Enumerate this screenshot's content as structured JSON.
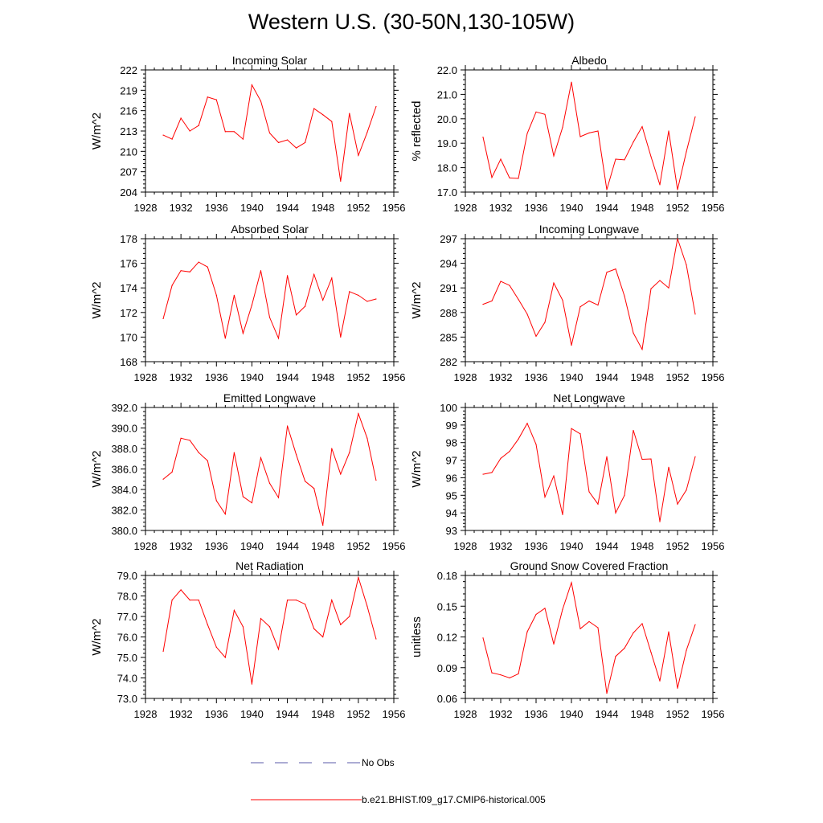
{
  "title": "Western U.S. (30-50N,130-105W)",
  "colors": {
    "model": "#ff0000",
    "obs": "#5a5aa8",
    "axis": "#000000"
  },
  "legend": {
    "obs_label": "No Obs",
    "model_label": "b.e21.BHIST.f09_g17.CMIP6-historical.005"
  },
  "chart_data": [
    {
      "type": "line",
      "title": "Incoming Solar",
      "ylabel": "W/m^2",
      "xlim": [
        1928,
        1956
      ],
      "ylim": [
        204,
        222
      ],
      "xticks": [
        "1928",
        "1932",
        "1936",
        "1940",
        "1944",
        "1948",
        "1952",
        "1956"
      ],
      "yticks": [
        "204",
        "207",
        "210",
        "213",
        "216",
        "219",
        "222"
      ],
      "series": [
        {
          "x": [
            1930,
            1931,
            1932,
            1933,
            1934,
            1935,
            1936,
            1937,
            1938,
            1939,
            1940,
            1941,
            1942,
            1943,
            1944,
            1945,
            1946,
            1947,
            1948,
            1949,
            1950,
            1951,
            1952,
            1953,
            1954
          ],
          "values": [
            212.4,
            211.8,
            214.9,
            213.0,
            213.8,
            218.0,
            217.6,
            212.9,
            212.9,
            211.8,
            219.8,
            217.4,
            212.7,
            211.3,
            211.7,
            210.5,
            211.3,
            216.3,
            215.4,
            214.4,
            205.6,
            215.6,
            209.4,
            212.8,
            216.6
          ]
        }
      ]
    },
    {
      "type": "line",
      "title": "Albedo",
      "ylabel": "% reflected",
      "xlim": [
        1928,
        1956
      ],
      "ylim": [
        17.0,
        22.0
      ],
      "xticks": [
        "1928",
        "1932",
        "1936",
        "1940",
        "1944",
        "1948",
        "1952",
        "1956"
      ],
      "yticks": [
        "17.0",
        "18.0",
        "19.0",
        "20.0",
        "21.0",
        "22.0"
      ],
      "series": [
        {
          "x": [
            1930,
            1931,
            1932,
            1933,
            1934,
            1935,
            1936,
            1937,
            1938,
            1939,
            1940,
            1941,
            1942,
            1943,
            1944,
            1945,
            1946,
            1947,
            1948,
            1949,
            1950,
            1951,
            1952,
            1953,
            1954
          ],
          "values": [
            19.25,
            17.6,
            18.35,
            17.58,
            17.56,
            19.4,
            20.28,
            20.18,
            18.48,
            19.65,
            21.5,
            19.27,
            19.42,
            19.5,
            17.1,
            18.35,
            18.32,
            19.05,
            19.68,
            18.45,
            17.3,
            19.5,
            17.1,
            18.65,
            20.08
          ]
        }
      ]
    },
    {
      "type": "line",
      "title": "Absorbed Solar",
      "ylabel": "W/m^2",
      "xlim": [
        1928,
        1956
      ],
      "ylim": [
        168,
        178
      ],
      "xticks": [
        "1928",
        "1932",
        "1936",
        "1940",
        "1944",
        "1948",
        "1952",
        "1956"
      ],
      "yticks": [
        "168",
        "170",
        "172",
        "174",
        "176",
        "178"
      ],
      "series": [
        {
          "x": [
            1930,
            1931,
            1932,
            1933,
            1934,
            1935,
            1936,
            1937,
            1938,
            1939,
            1940,
            1941,
            1942,
            1943,
            1944,
            1945,
            1946,
            1947,
            1948,
            1949,
            1950,
            1951,
            1952,
            1953,
            1954
          ],
          "values": [
            171.5,
            174.2,
            175.4,
            175.3,
            176.1,
            175.7,
            173.4,
            169.9,
            173.4,
            170.3,
            172.6,
            175.4,
            171.6,
            169.9,
            175.0,
            171.8,
            172.5,
            175.1,
            173.0,
            174.8,
            170.0,
            173.7,
            173.4,
            172.9,
            173.1
          ]
        }
      ]
    },
    {
      "type": "line",
      "title": "Incoming Longwave",
      "ylabel": "W/m^2",
      "xlim": [
        1928,
        1956
      ],
      "ylim": [
        282,
        297
      ],
      "xticks": [
        "1928",
        "1932",
        "1936",
        "1940",
        "1944",
        "1948",
        "1952",
        "1956"
      ],
      "yticks": [
        "282",
        "285",
        "288",
        "291",
        "294",
        "297"
      ],
      "series": [
        {
          "x": [
            1930,
            1931,
            1932,
            1933,
            1934,
            1935,
            1936,
            1937,
            1938,
            1939,
            1940,
            1941,
            1942,
            1943,
            1944,
            1945,
            1946,
            1947,
            1948,
            1949,
            1950,
            1951,
            1952,
            1953,
            1954
          ],
          "values": [
            289.0,
            289.4,
            291.8,
            291.3,
            289.6,
            287.8,
            285.1,
            286.8,
            291.6,
            289.5,
            284.0,
            288.7,
            289.4,
            288.9,
            292.9,
            293.3,
            290.0,
            285.5,
            283.5,
            290.9,
            291.9,
            291.0,
            297.0,
            293.8,
            287.8
          ]
        }
      ]
    },
    {
      "type": "line",
      "title": "Emitted Longwave",
      "ylabel": "W/m^2",
      "xlim": [
        1928,
        1956
      ],
      "ylim": [
        380.0,
        392.0
      ],
      "xticks": [
        "1928",
        "1932",
        "1936",
        "1940",
        "1944",
        "1948",
        "1952",
        "1956"
      ],
      "yticks": [
        "380.0",
        "382.0",
        "384.0",
        "386.0",
        "388.0",
        "390.0",
        "392.0"
      ],
      "series": [
        {
          "x": [
            1930,
            1931,
            1932,
            1933,
            1934,
            1935,
            1936,
            1937,
            1938,
            1939,
            1940,
            1941,
            1942,
            1943,
            1944,
            1945,
            1946,
            1947,
            1948,
            1949,
            1950,
            1951,
            1952,
            1953,
            1954
          ],
          "values": [
            385.0,
            385.7,
            389.0,
            388.8,
            387.6,
            386.8,
            382.9,
            381.6,
            387.6,
            383.3,
            382.7,
            387.1,
            384.6,
            383.2,
            390.2,
            387.4,
            384.8,
            384.1,
            380.5,
            388.0,
            385.5,
            387.6,
            391.4,
            389.0,
            384.9
          ]
        }
      ]
    },
    {
      "type": "line",
      "title": "Net Longwave",
      "ylabel": "W/m^2",
      "xlim": [
        1928,
        1956
      ],
      "ylim": [
        93,
        100
      ],
      "xticks": [
        "1928",
        "1932",
        "1936",
        "1940",
        "1944",
        "1948",
        "1952",
        "1956"
      ],
      "yticks": [
        "93",
        "94",
        "95",
        "96",
        "97",
        "98",
        "99",
        "100"
      ],
      "series": [
        {
          "x": [
            1930,
            1931,
            1932,
            1933,
            1934,
            1935,
            1936,
            1937,
            1938,
            1939,
            1940,
            1941,
            1942,
            1943,
            1944,
            1945,
            1946,
            1947,
            1948,
            1949,
            1950,
            1951,
            1952,
            1953,
            1954
          ],
          "values": [
            96.2,
            96.3,
            97.1,
            97.5,
            98.2,
            99.1,
            97.9,
            94.9,
            96.1,
            93.9,
            98.8,
            98.5,
            95.2,
            94.5,
            97.2,
            94.0,
            95.0,
            98.7,
            97.05,
            97.07,
            93.5,
            96.6,
            94.5,
            95.3,
            97.2
          ]
        }
      ]
    },
    {
      "type": "line",
      "title": "Net Radiation",
      "ylabel": "W/m^2",
      "xlim": [
        1928,
        1956
      ],
      "ylim": [
        73.0,
        79.0
      ],
      "xticks": [
        "1928",
        "1932",
        "1936",
        "1940",
        "1944",
        "1948",
        "1952",
        "1956"
      ],
      "yticks": [
        "73.0",
        "74.0",
        "75.0",
        "76.0",
        "77.0",
        "78.0",
        "79.0"
      ],
      "series": [
        {
          "x": [
            1930,
            1931,
            1932,
            1933,
            1934,
            1935,
            1936,
            1937,
            1938,
            1939,
            1940,
            1941,
            1942,
            1943,
            1944,
            1945,
            1946,
            1947,
            1948,
            1949,
            1950,
            1951,
            1952,
            1953,
            1954
          ],
          "values": [
            75.3,
            77.8,
            78.3,
            77.8,
            77.8,
            76.6,
            75.5,
            75.0,
            77.3,
            76.5,
            73.7,
            76.9,
            76.5,
            75.4,
            77.8,
            77.8,
            77.6,
            76.4,
            76.0,
            77.8,
            76.6,
            77.0,
            78.9,
            77.5,
            75.9
          ]
        }
      ]
    },
    {
      "type": "line",
      "title": "Ground Snow Covered Fraction",
      "ylabel": "unitless",
      "xlim": [
        1928,
        1956
      ],
      "ylim": [
        0.06,
        0.18
      ],
      "xticks": [
        "1928",
        "1932",
        "1936",
        "1940",
        "1944",
        "1948",
        "1952",
        "1956"
      ],
      "yticks": [
        "0.06",
        "0.09",
        "0.12",
        "0.15",
        "0.18"
      ],
      "series": [
        {
          "x": [
            1930,
            1931,
            1932,
            1933,
            1934,
            1935,
            1936,
            1937,
            1938,
            1939,
            1940,
            1941,
            1942,
            1943,
            1944,
            1945,
            1946,
            1947,
            1948,
            1949,
            1950,
            1951,
            1952,
            1953,
            1954
          ],
          "values": [
            0.119,
            0.085,
            0.083,
            0.08,
            0.084,
            0.125,
            0.142,
            0.148,
            0.113,
            0.147,
            0.173,
            0.128,
            0.135,
            0.129,
            0.065,
            0.101,
            0.109,
            0.124,
            0.133,
            0.105,
            0.077,
            0.125,
            0.07,
            0.107,
            0.132
          ]
        }
      ]
    }
  ]
}
